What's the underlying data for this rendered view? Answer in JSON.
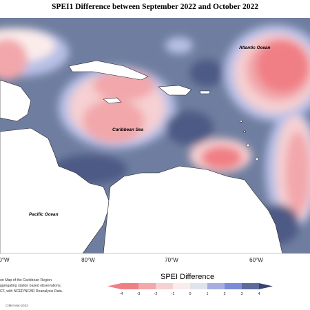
{
  "title": "SPEI1 Difference between September 2022 and October 2022",
  "map": {
    "labels": {
      "atlantic": "Atlantic Ocean",
      "caribbean": "Caribbean Sea",
      "pacific": "Pacific Ocean"
    },
    "longitude_labels": [
      "0°W",
      "80°W",
      "70°W",
      "60°W"
    ]
  },
  "notes": [
    "on Map of the Caribbean Region.",
    "ggregating station based observations,",
    "CF, with NCEP/NCAR Reanalysis Data."
  ],
  "legend": {
    "title": "SPEI Difference",
    "ticks": [
      "-4",
      "-3",
      "-2",
      "-1",
      "0",
      "1",
      "2",
      "3",
      "4"
    ],
    "colors": [
      "#f07f85",
      "#f2a7ab",
      "#f6d0d2",
      "#fbeceb",
      "#dfe4ec",
      "#a6aee0",
      "#7d8ad8",
      "#5e6b99"
    ]
  },
  "credit": "CIMH Mar-2023"
}
